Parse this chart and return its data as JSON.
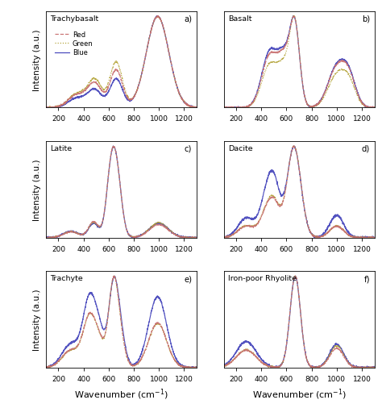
{
  "titles": [
    "Trachybasalt",
    "Basalt",
    "Latite",
    "Dacite",
    "Trachyte",
    "Iron-poor Rhyolite"
  ],
  "panel_labels": [
    "a)",
    "b)",
    "c)",
    "d)",
    "e)",
    "f)"
  ],
  "legend_labels": [
    "Red",
    "Green",
    "Blue"
  ],
  "colors_red": "#c87070",
  "colors_green": "#b0a030",
  "colors_blue": "#4444bb",
  "x_range": [
    100,
    1300
  ],
  "xlabel": "Wavenumber (cm$^{-1}$)",
  "ylabel": "Intensity (a.u.)",
  "background_color": "#ffffff"
}
